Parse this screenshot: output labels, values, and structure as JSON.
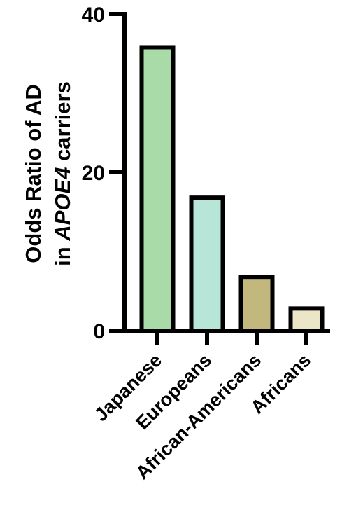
{
  "chart_data": {
    "type": "bar",
    "categories": [
      "Japanese",
      "Europeans",
      "African-Americans",
      "Africans"
    ],
    "values": [
      35.8,
      16.8,
      6.8,
      2.8
    ],
    "bar_colors": [
      "#a8dba8",
      "#b7e6d8",
      "#c2b77d",
      "#ece6c8"
    ],
    "edge_color": "#000000",
    "ylabel": {
      "line1": "Odds Ratio of AD",
      "line2_prefix": "in ",
      "line2_italic": "APOE4",
      "line2_suffix": " carriers"
    },
    "xlabel": "",
    "ylim": [
      0,
      40
    ],
    "yticks": [
      0,
      20,
      40
    ],
    "grid": false
  }
}
